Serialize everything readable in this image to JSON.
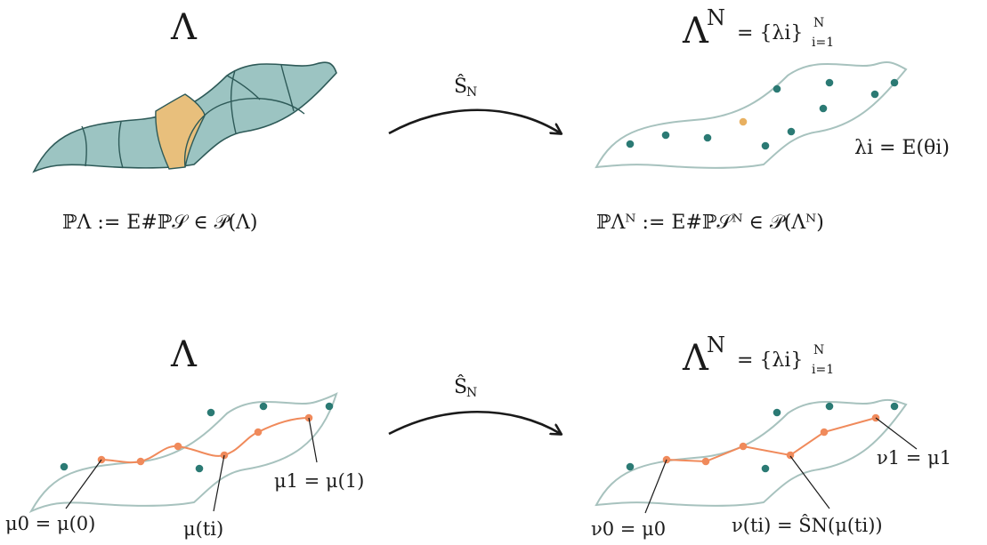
{
  "colors": {
    "region_fill": "#9cc4c2",
    "region_stroke": "#2e5a58",
    "outline": "#a7c2be",
    "dot": "#2b7a74",
    "highlight_cell": "#e8bf7c",
    "highlight_dot": "#e8b060",
    "path": "#f08a5b",
    "arrow": "#1a1a1a"
  },
  "top": {
    "left_title": "Λ",
    "right_title_base": "Λ",
    "right_title_sup": "N",
    "right_title_rest": "= {λi}",
    "right_title_sub": "i=1",
    "right_title_sup2": "N",
    "arrow_label": "Ŝ",
    "arrow_label_sub": "N",
    "left_formula": "ℙΛ := E#ℙ𝒮 ∈ 𝒫(Λ)",
    "right_formula": "ℙΛᴺ := E#ℙ𝒮ᴺ ∈ 𝒫(Λᴺ)",
    "sample_label": "λi = E(θi)"
  },
  "bottom": {
    "left_title": "Λ",
    "right_title_base": "Λ",
    "right_title_sup": "N",
    "right_title_rest": "= {λi}",
    "right_title_sub": "i=1",
    "right_title_sup2": "N",
    "arrow_label": "Ŝ",
    "arrow_label_sub": "N",
    "mu0_label": "μ0 = μ(0)",
    "mut_label": "μ(ti)",
    "mu1_label": "μ1 = μ(1)",
    "nu0_label": "ν0 = μ0",
    "nut_label": "ν(ti) = ŜN(μ(ti))",
    "nu1_label": "ν1 = μ1"
  }
}
